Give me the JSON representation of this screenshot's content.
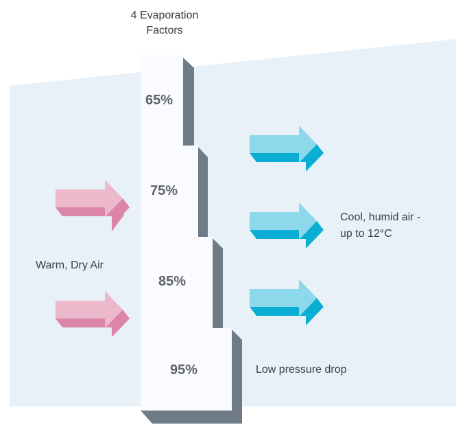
{
  "title": "4 Evaporation Factors",
  "stages": [
    {
      "label": "65%"
    },
    {
      "label": "75%"
    },
    {
      "label": "85%"
    },
    {
      "label": "95%"
    }
  ],
  "labels": {
    "input": "Warm, Dry Air",
    "output_line1": "Cool, humid air -",
    "output_line2": "up to 12°C",
    "pressure": "Low pressure drop"
  },
  "colors": {
    "background_panel": "#e8f0f8",
    "pad_front": "#fafbfe",
    "pad_side": "#6f7c87",
    "arrow_pink_light": "#ebb8cc",
    "arrow_pink_dark": "#db85a8",
    "arrow_blue_light": "#8ed8ec",
    "arrow_blue_dark": "#0aaed2",
    "percent_text": "#5f6368"
  },
  "icons": {
    "input_arrows": "pink-arrow-right-icon",
    "output_arrows": "blue-arrow-right-icon"
  }
}
